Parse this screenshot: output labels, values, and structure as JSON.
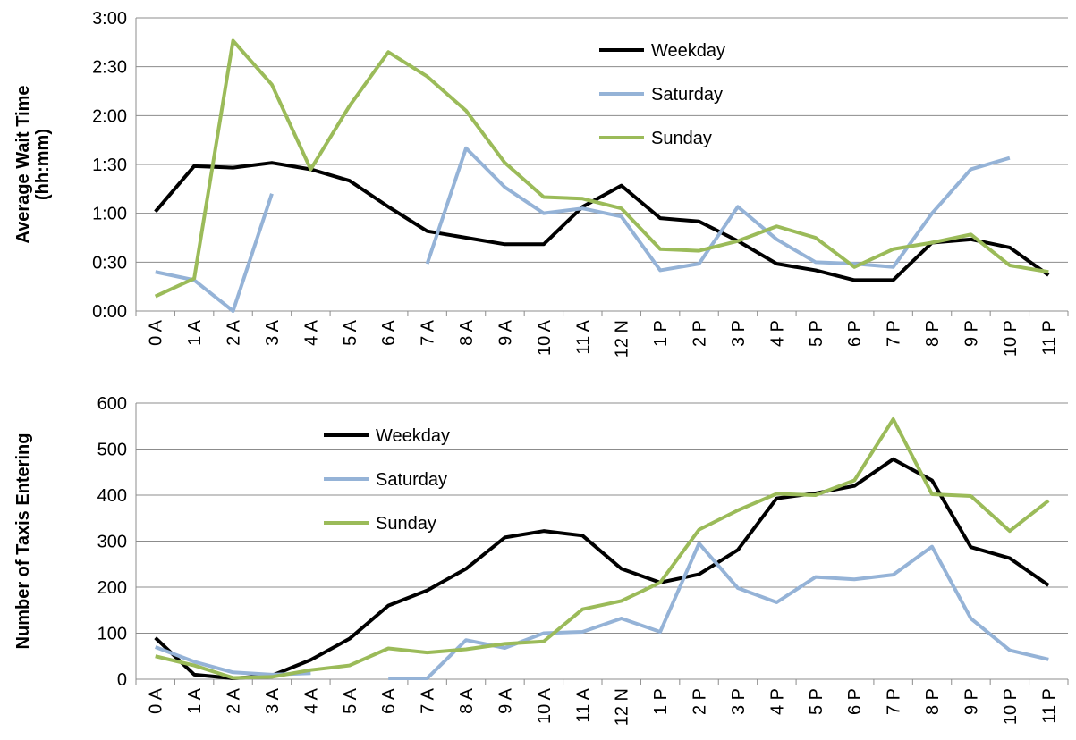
{
  "chart_data": [
    {
      "type": "line",
      "y_label": [
        "Average Wait Time",
        "(hh:mm)"
      ],
      "categories": [
        "0 A",
        "1 A",
        "2 A",
        "3 A",
        "4 A",
        "5 A",
        "6 A",
        "7 A",
        "8 A",
        "9 A",
        "10 A",
        "11 A",
        "12 N",
        "1 P",
        "2 P",
        "3 P",
        "4 P",
        "5 P",
        "6 P",
        "7 P",
        "8 P",
        "9 P",
        "10 P",
        "11 P"
      ],
      "series": [
        {
          "name": "Weekday",
          "color": "#000000",
          "values": [
            61,
            89,
            88,
            91,
            87,
            80,
            64,
            49,
            45,
            41,
            41,
            64,
            77,
            57,
            55,
            43,
            29,
            25,
            19,
            19,
            42,
            44,
            39,
            22
          ]
        },
        {
          "name": "Saturday",
          "color": "#95b3d7",
          "values": [
            24,
            19,
            0,
            72,
            null,
            null,
            null,
            29,
            100,
            76,
            60,
            63,
            58,
            25,
            29,
            64,
            44,
            30,
            29,
            27,
            60,
            87,
            94,
            null
          ]
        },
        {
          "name": "Sunday",
          "color": "#9bbb59",
          "values": [
            9,
            20,
            166,
            139,
            87,
            126,
            159,
            144,
            123,
            91,
            70,
            69,
            63,
            38,
            37,
            43,
            52,
            45,
            27,
            38,
            42,
            47,
            28,
            24
          ]
        }
      ],
      "ylim": [
        0,
        180
      ],
      "yticks": [
        {
          "value": 0,
          "label": "0:00"
        },
        {
          "value": 30,
          "label": "0:30"
        },
        {
          "value": 60,
          "label": "1:00"
        },
        {
          "value": 90,
          "label": "1:30"
        },
        {
          "value": 120,
          "label": "2:00"
        },
        {
          "value": 150,
          "label": "2:30"
        },
        {
          "value": 180,
          "label": "3:00"
        }
      ],
      "grid": true,
      "legend": "top-center"
    },
    {
      "type": "line",
      "y_label": [
        "Number of Taxis Entering"
      ],
      "categories": [
        "0 A",
        "1 A",
        "2 A",
        "3 A",
        "4 A",
        "5 A",
        "6 A",
        "7 A",
        "8 A",
        "9 A",
        "10 A",
        "11 A",
        "12 N",
        "1 P",
        "2 P",
        "3 P",
        "4 P",
        "5 P",
        "6 P",
        "7 P",
        "8 P",
        "9 P",
        "10 P",
        "11 P"
      ],
      "series": [
        {
          "name": "Weekday",
          "color": "#000000",
          "values": [
            90,
            10,
            2,
            8,
            42,
            88,
            160,
            193,
            240,
            308,
            322,
            312,
            240,
            210,
            228,
            281,
            393,
            404,
            420,
            478,
            432,
            287,
            263,
            204
          ]
        },
        {
          "name": "Saturday",
          "color": "#95b3d7",
          "values": [
            70,
            38,
            15,
            10,
            13,
            null,
            2,
            2,
            85,
            68,
            100,
            103,
            132,
            103,
            295,
            198,
            167,
            222,
            217,
            227,
            288,
            132,
            63,
            43
          ]
        },
        {
          "name": "Sunday",
          "color": "#9bbb59",
          "values": [
            50,
            30,
            3,
            5,
            20,
            30,
            67,
            58,
            65,
            77,
            82,
            152,
            170,
            210,
            325,
            367,
            403,
            400,
            432,
            565,
            402,
            398,
            322,
            388
          ]
        }
      ],
      "ylim": [
        0,
        600
      ],
      "yticks": [
        0,
        100,
        200,
        300,
        400,
        500,
        600
      ],
      "grid": true,
      "legend": "top-left"
    }
  ]
}
